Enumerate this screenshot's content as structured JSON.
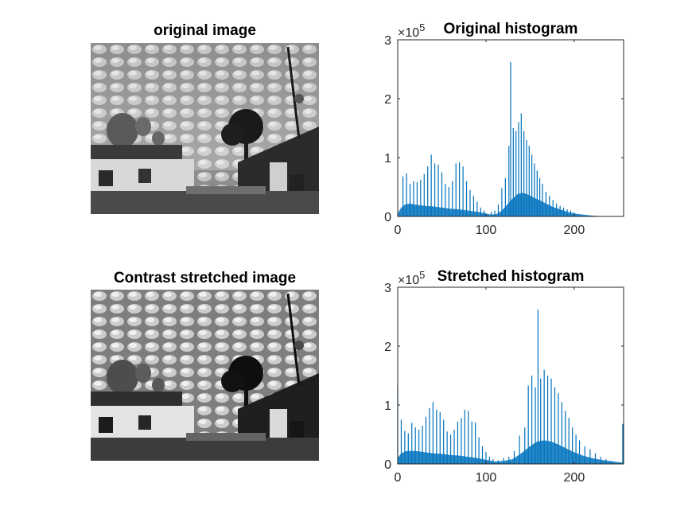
{
  "figure": {
    "left_images": [
      {
        "title": "original image",
        "photo": "grayscale-mosque-under-altocumulus-sky"
      },
      {
        "title": "Contrast stretched image",
        "photo": "grayscale-mosque-under-altocumulus-sky-stretched"
      }
    ]
  },
  "colors": {
    "bar": "#0072BD",
    "axis": "#262626"
  },
  "chart_data": [
    {
      "type": "bar",
      "title": "Original histogram",
      "exponent_label": "×10",
      "exponent_power": "5",
      "xlim": [
        0,
        256
      ],
      "ylim": [
        0,
        3
      ],
      "y_scale_factor": 100000,
      "x_ticks": [
        0,
        100,
        200
      ],
      "y_ticks": [
        0,
        1,
        2,
        3
      ],
      "grid": false,
      "spikes": [
        [
          6,
          0.68
        ],
        [
          10,
          0.73
        ],
        [
          14,
          0.55
        ],
        [
          18,
          0.6
        ],
        [
          22,
          0.58
        ],
        [
          26,
          0.62
        ],
        [
          30,
          0.72
        ],
        [
          34,
          0.85
        ],
        [
          38,
          1.05
        ],
        [
          42,
          0.9
        ],
        [
          46,
          0.88
        ],
        [
          50,
          0.75
        ],
        [
          54,
          0.55
        ],
        [
          58,
          0.5
        ],
        [
          62,
          0.6
        ],
        [
          66,
          0.9
        ],
        [
          70,
          0.92
        ],
        [
          74,
          0.85
        ],
        [
          78,
          0.6
        ],
        [
          82,
          0.45
        ],
        [
          86,
          0.35
        ],
        [
          90,
          0.25
        ],
        [
          94,
          0.15
        ],
        [
          98,
          0.1
        ],
        [
          106,
          0.08
        ],
        [
          110,
          0.1
        ],
        [
          114,
          0.2
        ],
        [
          118,
          0.48
        ],
        [
          122,
          0.65
        ],
        [
          126,
          1.2
        ],
        [
          128,
          2.62
        ],
        [
          131,
          1.5
        ],
        [
          134,
          1.45
        ],
        [
          137,
          1.6
        ],
        [
          140,
          1.75
        ],
        [
          143,
          1.45
        ],
        [
          146,
          1.3
        ],
        [
          149,
          1.2
        ],
        [
          152,
          1.05
        ],
        [
          155,
          0.9
        ],
        [
          158,
          0.78
        ],
        [
          161,
          0.65
        ],
        [
          164,
          0.55
        ],
        [
          168,
          0.42
        ],
        [
          172,
          0.35
        ],
        [
          176,
          0.28
        ],
        [
          180,
          0.22
        ],
        [
          184,
          0.18
        ],
        [
          188,
          0.15
        ],
        [
          192,
          0.12
        ],
        [
          196,
          0.1
        ],
        [
          200,
          0.07
        ]
      ],
      "envelope": [
        [
          0,
          0.05
        ],
        [
          4,
          0.15
        ],
        [
          8,
          0.2
        ],
        [
          14,
          0.22
        ],
        [
          20,
          0.2
        ],
        [
          30,
          0.18
        ],
        [
          40,
          0.17
        ],
        [
          50,
          0.15
        ],
        [
          60,
          0.13
        ],
        [
          70,
          0.12
        ],
        [
          80,
          0.1
        ],
        [
          90,
          0.08
        ],
        [
          100,
          0.05
        ],
        [
          106,
          0.03
        ],
        [
          112,
          0.04
        ],
        [
          118,
          0.1
        ],
        [
          124,
          0.2
        ],
        [
          130,
          0.3
        ],
        [
          136,
          0.38
        ],
        [
          142,
          0.4
        ],
        [
          148,
          0.37
        ],
        [
          154,
          0.32
        ],
        [
          160,
          0.28
        ],
        [
          168,
          0.22
        ],
        [
          176,
          0.16
        ],
        [
          184,
          0.12
        ],
        [
          192,
          0.08
        ],
        [
          200,
          0.05
        ],
        [
          210,
          0.03
        ],
        [
          220,
          0.015
        ],
        [
          230,
          0.005
        ],
        [
          240,
          0.002
        ],
        [
          256,
          0
        ]
      ]
    },
    {
      "type": "bar",
      "title": "Stretched histogram",
      "exponent_label": "×10",
      "exponent_power": "5",
      "xlim": [
        0,
        256
      ],
      "ylim": [
        0,
        3
      ],
      "y_scale_factor": 100000,
      "x_ticks": [
        0,
        100,
        200
      ],
      "y_ticks": [
        0,
        1,
        2,
        3
      ],
      "grid": false,
      "spikes": [
        [
          0,
          1.33
        ],
        [
          4,
          0.75
        ],
        [
          8,
          0.56
        ],
        [
          12,
          0.52
        ],
        [
          16,
          0.7
        ],
        [
          20,
          0.62
        ],
        [
          24,
          0.58
        ],
        [
          28,
          0.65
        ],
        [
          32,
          0.8
        ],
        [
          36,
          0.95
        ],
        [
          40,
          1.05
        ],
        [
          44,
          0.92
        ],
        [
          48,
          0.88
        ],
        [
          52,
          0.75
        ],
        [
          56,
          0.55
        ],
        [
          60,
          0.5
        ],
        [
          64,
          0.58
        ],
        [
          68,
          0.72
        ],
        [
          72,
          0.78
        ],
        [
          76,
          0.92
        ],
        [
          80,
          0.9
        ],
        [
          84,
          0.72
        ],
        [
          88,
          0.7
        ],
        [
          92,
          0.45
        ],
        [
          96,
          0.3
        ],
        [
          100,
          0.2
        ],
        [
          104,
          0.12
        ],
        [
          108,
          0.08
        ],
        [
          114,
          0.06
        ],
        [
          120,
          0.1
        ],
        [
          126,
          0.12
        ],
        [
          132,
          0.22
        ],
        [
          138,
          0.48
        ],
        [
          144,
          0.62
        ],
        [
          148,
          1.33
        ],
        [
          152,
          1.5
        ],
        [
          156,
          1.3
        ],
        [
          159,
          2.62
        ],
        [
          162,
          1.45
        ],
        [
          166,
          1.6
        ],
        [
          170,
          1.5
        ],
        [
          174,
          1.45
        ],
        [
          178,
          1.3
        ],
        [
          182,
          1.2
        ],
        [
          186,
          1.05
        ],
        [
          190,
          0.9
        ],
        [
          194,
          0.78
        ],
        [
          198,
          0.62
        ],
        [
          202,
          0.5
        ],
        [
          206,
          0.4
        ],
        [
          212,
          0.3
        ],
        [
          218,
          0.25
        ],
        [
          224,
          0.18
        ],
        [
          230,
          0.12
        ],
        [
          236,
          0.08
        ],
        [
          242,
          0.05
        ],
        [
          255,
          0.68
        ]
      ],
      "envelope": [
        [
          0,
          0.1
        ],
        [
          4,
          0.18
        ],
        [
          10,
          0.22
        ],
        [
          20,
          0.22
        ],
        [
          30,
          0.2
        ],
        [
          40,
          0.18
        ],
        [
          50,
          0.17
        ],
        [
          60,
          0.15
        ],
        [
          70,
          0.14
        ],
        [
          80,
          0.12
        ],
        [
          90,
          0.1
        ],
        [
          100,
          0.07
        ],
        [
          110,
          0.04
        ],
        [
          120,
          0.05
        ],
        [
          130,
          0.08
        ],
        [
          140,
          0.18
        ],
        [
          150,
          0.3
        ],
        [
          158,
          0.38
        ],
        [
          166,
          0.4
        ],
        [
          174,
          0.38
        ],
        [
          182,
          0.33
        ],
        [
          190,
          0.27
        ],
        [
          200,
          0.2
        ],
        [
          210,
          0.14
        ],
        [
          220,
          0.1
        ],
        [
          230,
          0.07
        ],
        [
          240,
          0.05
        ],
        [
          250,
          0.03
        ],
        [
          256,
          0.02
        ]
      ]
    }
  ]
}
